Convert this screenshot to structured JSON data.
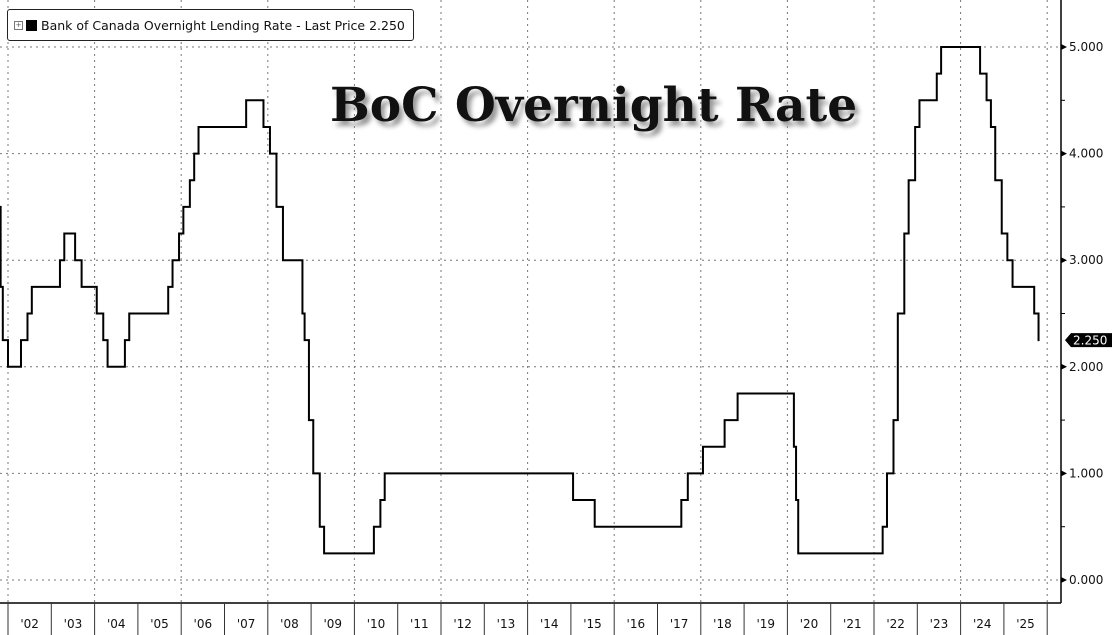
{
  "chart_data": {
    "type": "line",
    "title": "BoC Overnight Rate",
    "legend": "Bank of Canada Overnight Lending Rate - Last Price 2.250",
    "legend_placement": "top-left",
    "last_price_label": "2.250",
    "line_color": "#000000",
    "y_axis_side": "right",
    "ylim": [
      0,
      5.4
    ],
    "yticks": [
      "0.000",
      "1.000",
      "2.000",
      "3.000",
      "4.000",
      "5.000"
    ],
    "xlim": [
      2001.8,
      2026.4
    ],
    "xtick_labels": [
      "'02",
      "'03",
      "'04",
      "'05",
      "'06",
      "'07",
      "'08",
      "'09",
      "'10",
      "'11",
      "'12",
      "'13",
      "'14",
      "'15",
      "'16",
      "'17",
      "'18",
      "'19",
      "'20",
      "'21",
      "'22",
      "'23",
      "'24",
      "'25"
    ],
    "grid": true,
    "step_series": [
      [
        2001.8,
        3.5
      ],
      [
        2001.83,
        2.75
      ],
      [
        2001.88,
        2.25
      ],
      [
        2002.0,
        2.0
      ],
      [
        2002.3,
        2.25
      ],
      [
        2002.45,
        2.5
      ],
      [
        2002.55,
        2.75
      ],
      [
        2003.2,
        3.0
      ],
      [
        2003.3,
        3.25
      ],
      [
        2003.55,
        3.0
      ],
      [
        2003.7,
        2.75
      ],
      [
        2004.05,
        2.5
      ],
      [
        2004.2,
        2.25
      ],
      [
        2004.3,
        2.0
      ],
      [
        2004.7,
        2.25
      ],
      [
        2004.8,
        2.5
      ],
      [
        2005.7,
        2.75
      ],
      [
        2005.8,
        3.0
      ],
      [
        2005.95,
        3.25
      ],
      [
        2006.05,
        3.5
      ],
      [
        2006.2,
        3.75
      ],
      [
        2006.3,
        4.0
      ],
      [
        2006.4,
        4.25
      ],
      [
        2007.5,
        4.5
      ],
      [
        2007.9,
        4.25
      ],
      [
        2008.05,
        4.0
      ],
      [
        2008.2,
        3.5
      ],
      [
        2008.35,
        3.0
      ],
      [
        2008.8,
        2.5
      ],
      [
        2008.85,
        2.25
      ],
      [
        2008.95,
        1.5
      ],
      [
        2009.05,
        1.0
      ],
      [
        2009.2,
        0.5
      ],
      [
        2009.3,
        0.25
      ],
      [
        2010.45,
        0.5
      ],
      [
        2010.6,
        0.75
      ],
      [
        2010.7,
        1.0
      ],
      [
        2015.05,
        0.75
      ],
      [
        2015.55,
        0.5
      ],
      [
        2017.55,
        0.75
      ],
      [
        2017.7,
        1.0
      ],
      [
        2018.05,
        1.25
      ],
      [
        2018.55,
        1.5
      ],
      [
        2018.85,
        1.75
      ],
      [
        2020.15,
        1.25
      ],
      [
        2020.2,
        0.75
      ],
      [
        2020.25,
        0.25
      ],
      [
        2022.2,
        0.5
      ],
      [
        2022.3,
        1.0
      ],
      [
        2022.45,
        1.5
      ],
      [
        2022.55,
        2.5
      ],
      [
        2022.7,
        3.25
      ],
      [
        2022.8,
        3.75
      ],
      [
        2022.95,
        4.25
      ],
      [
        2023.05,
        4.5
      ],
      [
        2023.45,
        4.75
      ],
      [
        2023.55,
        5.0
      ],
      [
        2024.45,
        4.75
      ],
      [
        2024.6,
        4.5
      ],
      [
        2024.7,
        4.25
      ],
      [
        2024.8,
        3.75
      ],
      [
        2024.95,
        3.25
      ],
      [
        2025.08,
        3.0
      ],
      [
        2025.2,
        2.75
      ],
      [
        2025.7,
        2.5
      ],
      [
        2025.8,
        2.25
      ]
    ]
  }
}
